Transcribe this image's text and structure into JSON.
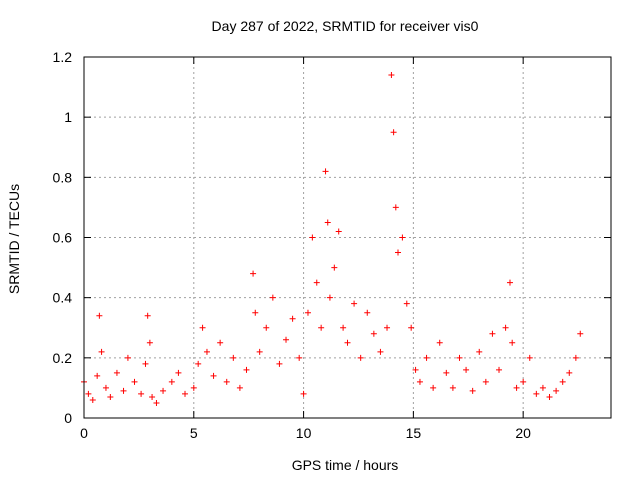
{
  "chart_data": {
    "type": "scatter",
    "title": "Day 287 of 2022, SRMTID for receiver vis0",
    "xlabel": "GPS time / hours",
    "ylabel": "SRMTID / TECUs",
    "xlim": [
      0,
      24
    ],
    "ylim": [
      0,
      1.2
    ],
    "x_ticks": [
      0,
      5,
      10,
      15,
      20
    ],
    "y_ticks": [
      0,
      0.2,
      0.4,
      0.6,
      0.8,
      1,
      1.2
    ],
    "x_tick_labels": [
      "0",
      "5",
      "10",
      "15",
      "20"
    ],
    "y_tick_labels": [
      "0",
      "0.2",
      "0.4",
      "0.6",
      "0.8",
      "1",
      "1.2"
    ],
    "grid": true,
    "marker": "+",
    "marker_color": "#ff0000",
    "series": [
      {
        "name": "vis0",
        "x": [
          0.0,
          0.2,
          0.4,
          0.6,
          0.7,
          0.8,
          1.0,
          1.2,
          1.5,
          1.8,
          2.0,
          2.3,
          2.6,
          2.8,
          2.9,
          3.0,
          3.1,
          3.3,
          3.6,
          4.0,
          4.3,
          4.6,
          5.0,
          5.2,
          5.4,
          5.6,
          5.9,
          6.2,
          6.5,
          6.8,
          7.1,
          7.4,
          7.7,
          7.8,
          8.0,
          8.3,
          8.6,
          8.9,
          9.2,
          9.5,
          9.8,
          10.0,
          10.2,
          10.4,
          10.6,
          10.8,
          11.0,
          11.1,
          11.2,
          11.4,
          11.6,
          11.8,
          12.0,
          12.3,
          12.6,
          12.9,
          13.2,
          13.5,
          13.8,
          14.0,
          14.1,
          14.2,
          14.3,
          14.5,
          14.7,
          14.9,
          15.1,
          15.3,
          15.6,
          15.9,
          16.2,
          16.5,
          16.8,
          17.1,
          17.4,
          17.7,
          18.0,
          18.3,
          18.6,
          18.9,
          19.2,
          19.4,
          19.5,
          19.7,
          20.0,
          20.3,
          20.6,
          20.9,
          21.2,
          21.5,
          21.8,
          22.1,
          22.4,
          22.6
        ],
        "y": [
          0.12,
          0.08,
          0.06,
          0.14,
          0.34,
          0.22,
          0.1,
          0.07,
          0.15,
          0.09,
          0.2,
          0.12,
          0.08,
          0.18,
          0.34,
          0.25,
          0.07,
          0.05,
          0.09,
          0.12,
          0.15,
          0.08,
          0.1,
          0.18,
          0.3,
          0.22,
          0.14,
          0.25,
          0.12,
          0.2,
          0.1,
          0.16,
          0.48,
          0.35,
          0.22,
          0.3,
          0.4,
          0.18,
          0.26,
          0.33,
          0.2,
          0.08,
          0.35,
          0.6,
          0.45,
          0.3,
          0.82,
          0.65,
          0.4,
          0.5,
          0.62,
          0.3,
          0.25,
          0.38,
          0.2,
          0.35,
          0.28,
          0.22,
          0.3,
          1.14,
          0.95,
          0.7,
          0.55,
          0.6,
          0.38,
          0.3,
          0.16,
          0.12,
          0.2,
          0.1,
          0.25,
          0.15,
          0.1,
          0.2,
          0.16,
          0.09,
          0.22,
          0.12,
          0.28,
          0.16,
          0.3,
          0.45,
          0.25,
          0.1,
          0.12,
          0.2,
          0.08,
          0.1,
          0.07,
          0.09,
          0.12,
          0.15,
          0.2,
          0.28
        ]
      }
    ]
  }
}
